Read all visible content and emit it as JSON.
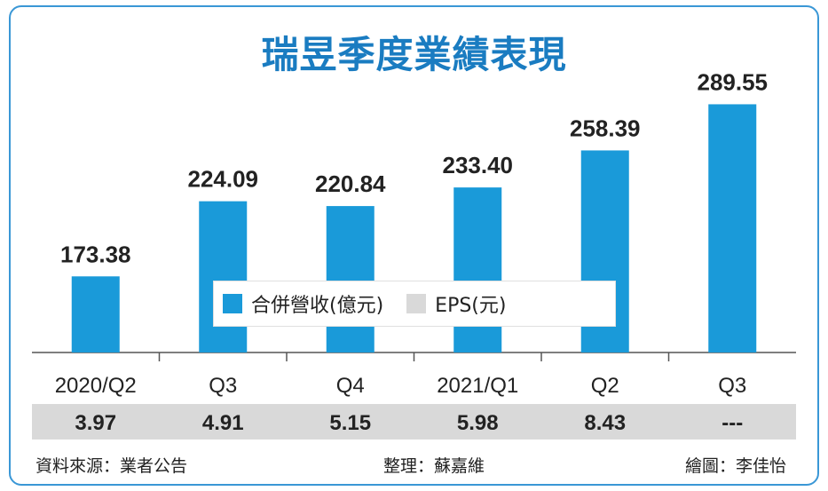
{
  "title": "瑞昱季度業績表現",
  "colors": {
    "bar": "#1a9ad9",
    "eps_band": "#d9d9d9",
    "title": "#1a7cc1",
    "frame": "#3a97d6"
  },
  "legend": [
    {
      "label": "合併營收(億元)",
      "color": "#1a9ad9"
    },
    {
      "label": "EPS(元)",
      "color": "#d9d9d9"
    }
  ],
  "chart_data": {
    "type": "bar",
    "categories": [
      "2020/Q2",
      "Q3",
      "Q4",
      "2021/Q1",
      "Q2",
      "Q3"
    ],
    "series": [
      {
        "name": "合併營收(億元)",
        "values": [
          173.38,
          224.09,
          220.84,
          233.4,
          258.39,
          289.55
        ]
      }
    ],
    "value_labels": [
      "173.38",
      "224.09",
      "220.84",
      "233.40",
      "258.39",
      "289.55"
    ],
    "table": {
      "name": "EPS(元)",
      "values": [
        "3.97",
        "4.91",
        "5.15",
        "5.98",
        "8.43",
        "---"
      ]
    },
    "ylim": [
      0,
      300
    ],
    "grid": false,
    "legend_position": "center"
  },
  "footer": {
    "source": "資料來源：業者公告",
    "editor": "整理：蘇嘉維",
    "artist": "繪圖：李佳怡"
  }
}
